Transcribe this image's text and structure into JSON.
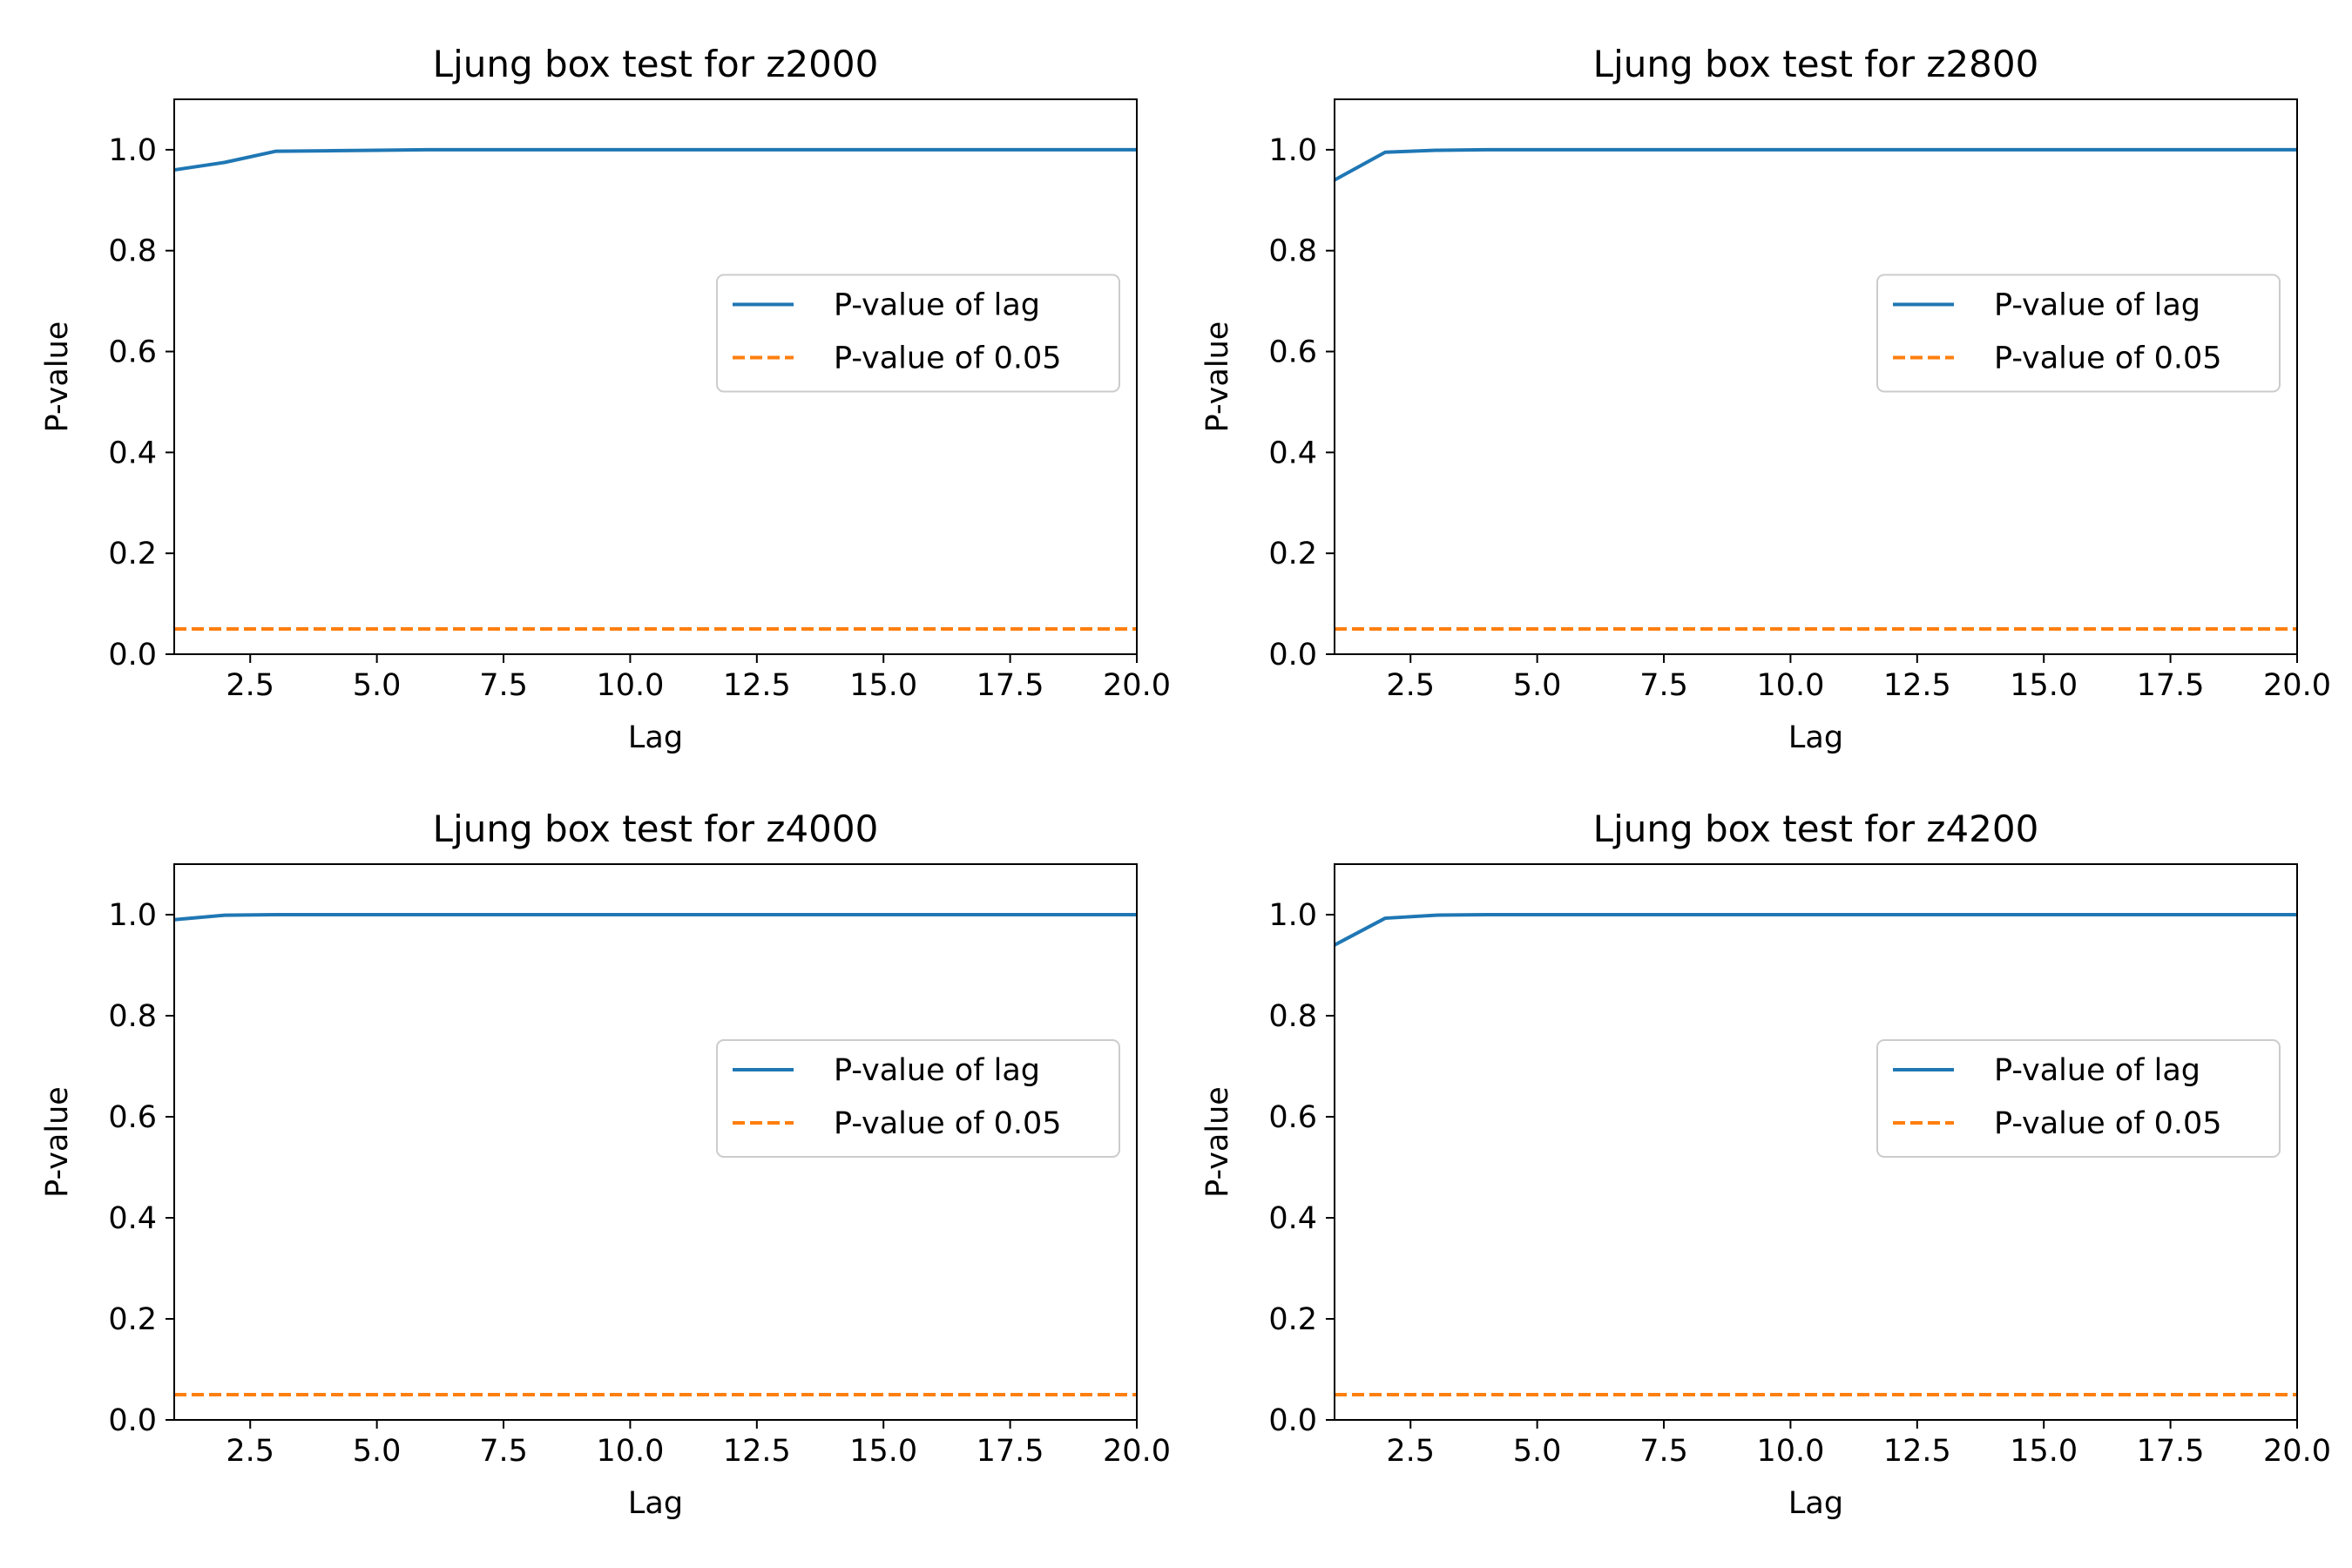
{
  "chart_data": [
    {
      "type": "line",
      "title": "Ljung box test for z2000",
      "xlabel": "Lag",
      "ylabel": "P-value",
      "xlim": [
        1,
        20
      ],
      "ylim": [
        0,
        1.1
      ],
      "xticks": [
        2.5,
        5.0,
        7.5,
        10.0,
        12.5,
        15.0,
        17.5,
        20.0
      ],
      "xtick_labels": [
        "2.5",
        "5.0",
        "7.5",
        "10.0",
        "12.5",
        "15.0",
        "17.5",
        "20.0"
      ],
      "yticks": [
        0.0,
        0.2,
        0.4,
        0.6,
        0.8,
        1.0
      ],
      "ytick_labels": [
        "0.0",
        "0.2",
        "0.4",
        "0.6",
        "0.8",
        "1.0"
      ],
      "legend_position": "center-right",
      "series": [
        {
          "name": "P-value of lag",
          "color": "#1f77b4",
          "style": "solid",
          "x": [
            1,
            2,
            3,
            4,
            5,
            6,
            7,
            8,
            9,
            10,
            11,
            12,
            13,
            14,
            15,
            16,
            17,
            18,
            19,
            20
          ],
          "y": [
            0.96,
            0.975,
            0.997,
            0.998,
            0.999,
            1.0,
            1.0,
            1.0,
            1.0,
            1.0,
            1.0,
            1.0,
            1.0,
            1.0,
            1.0,
            1.0,
            1.0,
            1.0,
            1.0,
            1.0
          ]
        },
        {
          "name": "P-value of 0.05",
          "color": "#ff7f0e",
          "style": "dashed",
          "x": [
            1,
            20
          ],
          "y": [
            0.05,
            0.05
          ]
        }
      ]
    },
    {
      "type": "line",
      "title": "Ljung box test for z2800",
      "xlabel": "Lag",
      "ylabel": "P-value",
      "xlim": [
        1,
        20
      ],
      "ylim": [
        0,
        1.1
      ],
      "xticks": [
        2.5,
        5.0,
        7.5,
        10.0,
        12.5,
        15.0,
        17.5,
        20.0
      ],
      "xtick_labels": [
        "2.5",
        "5.0",
        "7.5",
        "10.0",
        "12.5",
        "15.0",
        "17.5",
        "20.0"
      ],
      "yticks": [
        0.0,
        0.2,
        0.4,
        0.6,
        0.8,
        1.0
      ],
      "ytick_labels": [
        "0.0",
        "0.2",
        "0.4",
        "0.6",
        "0.8",
        "1.0"
      ],
      "legend_position": "center-right",
      "series": [
        {
          "name": "P-value of lag",
          "color": "#1f77b4",
          "style": "solid",
          "x": [
            1,
            2,
            3,
            4,
            5,
            6,
            7,
            8,
            9,
            10,
            11,
            12,
            13,
            14,
            15,
            16,
            17,
            18,
            19,
            20
          ],
          "y": [
            0.94,
            0.995,
            0.999,
            1.0,
            1.0,
            1.0,
            1.0,
            1.0,
            1.0,
            1.0,
            1.0,
            1.0,
            1.0,
            1.0,
            1.0,
            1.0,
            1.0,
            1.0,
            1.0,
            1.0
          ]
        },
        {
          "name": "P-value of 0.05",
          "color": "#ff7f0e",
          "style": "dashed",
          "x": [
            1,
            20
          ],
          "y": [
            0.05,
            0.05
          ]
        }
      ]
    },
    {
      "type": "line",
      "title": "Ljung box test for z4000",
      "xlabel": "Lag",
      "ylabel": "P-value",
      "xlim": [
        1,
        20
      ],
      "ylim": [
        0,
        1.1
      ],
      "xticks": [
        2.5,
        5.0,
        7.5,
        10.0,
        12.5,
        15.0,
        17.5,
        20.0
      ],
      "xtick_labels": [
        "2.5",
        "5.0",
        "7.5",
        "10.0",
        "12.5",
        "15.0",
        "17.5",
        "20.0"
      ],
      "yticks": [
        0.0,
        0.2,
        0.4,
        0.6,
        0.8,
        1.0
      ],
      "ytick_labels": [
        "0.0",
        "0.2",
        "0.4",
        "0.6",
        "0.8",
        "1.0"
      ],
      "legend_position": "center-right",
      "series": [
        {
          "name": "P-value of lag",
          "color": "#1f77b4",
          "style": "solid",
          "x": [
            1,
            2,
            3,
            4,
            5,
            6,
            7,
            8,
            9,
            10,
            11,
            12,
            13,
            14,
            15,
            16,
            17,
            18,
            19,
            20
          ],
          "y": [
            0.99,
            0.999,
            1.0,
            1.0,
            1.0,
            1.0,
            1.0,
            1.0,
            1.0,
            1.0,
            1.0,
            1.0,
            1.0,
            1.0,
            1.0,
            1.0,
            1.0,
            1.0,
            1.0,
            1.0
          ]
        },
        {
          "name": "P-value of 0.05",
          "color": "#ff7f0e",
          "style": "dashed",
          "x": [
            1,
            20
          ],
          "y": [
            0.05,
            0.05
          ]
        }
      ]
    },
    {
      "type": "line",
      "title": "Ljung box test for z4200",
      "xlabel": "Lag",
      "ylabel": "P-value",
      "xlim": [
        1,
        20
      ],
      "ylim": [
        0,
        1.1
      ],
      "xticks": [
        2.5,
        5.0,
        7.5,
        10.0,
        12.5,
        15.0,
        17.5,
        20.0
      ],
      "xtick_labels": [
        "2.5",
        "5.0",
        "7.5",
        "10.0",
        "12.5",
        "15.0",
        "17.5",
        "20.0"
      ],
      "yticks": [
        0.0,
        0.2,
        0.4,
        0.6,
        0.8,
        1.0
      ],
      "ytick_labels": [
        "0.0",
        "0.2",
        "0.4",
        "0.6",
        "0.8",
        "1.0"
      ],
      "legend_position": "center-right",
      "series": [
        {
          "name": "P-value of lag",
          "color": "#1f77b4",
          "style": "solid",
          "x": [
            1,
            2,
            3,
            4,
            5,
            6,
            7,
            8,
            9,
            10,
            11,
            12,
            13,
            14,
            15,
            16,
            17,
            18,
            19,
            20
          ],
          "y": [
            0.94,
            0.993,
            0.999,
            1.0,
            1.0,
            1.0,
            1.0,
            1.0,
            1.0,
            1.0,
            1.0,
            1.0,
            1.0,
            1.0,
            1.0,
            1.0,
            1.0,
            1.0,
            1.0,
            1.0
          ]
        },
        {
          "name": "P-value of 0.05",
          "color": "#ff7f0e",
          "style": "dashed",
          "x": [
            1,
            20
          ],
          "y": [
            0.05,
            0.05
          ]
        }
      ]
    }
  ]
}
